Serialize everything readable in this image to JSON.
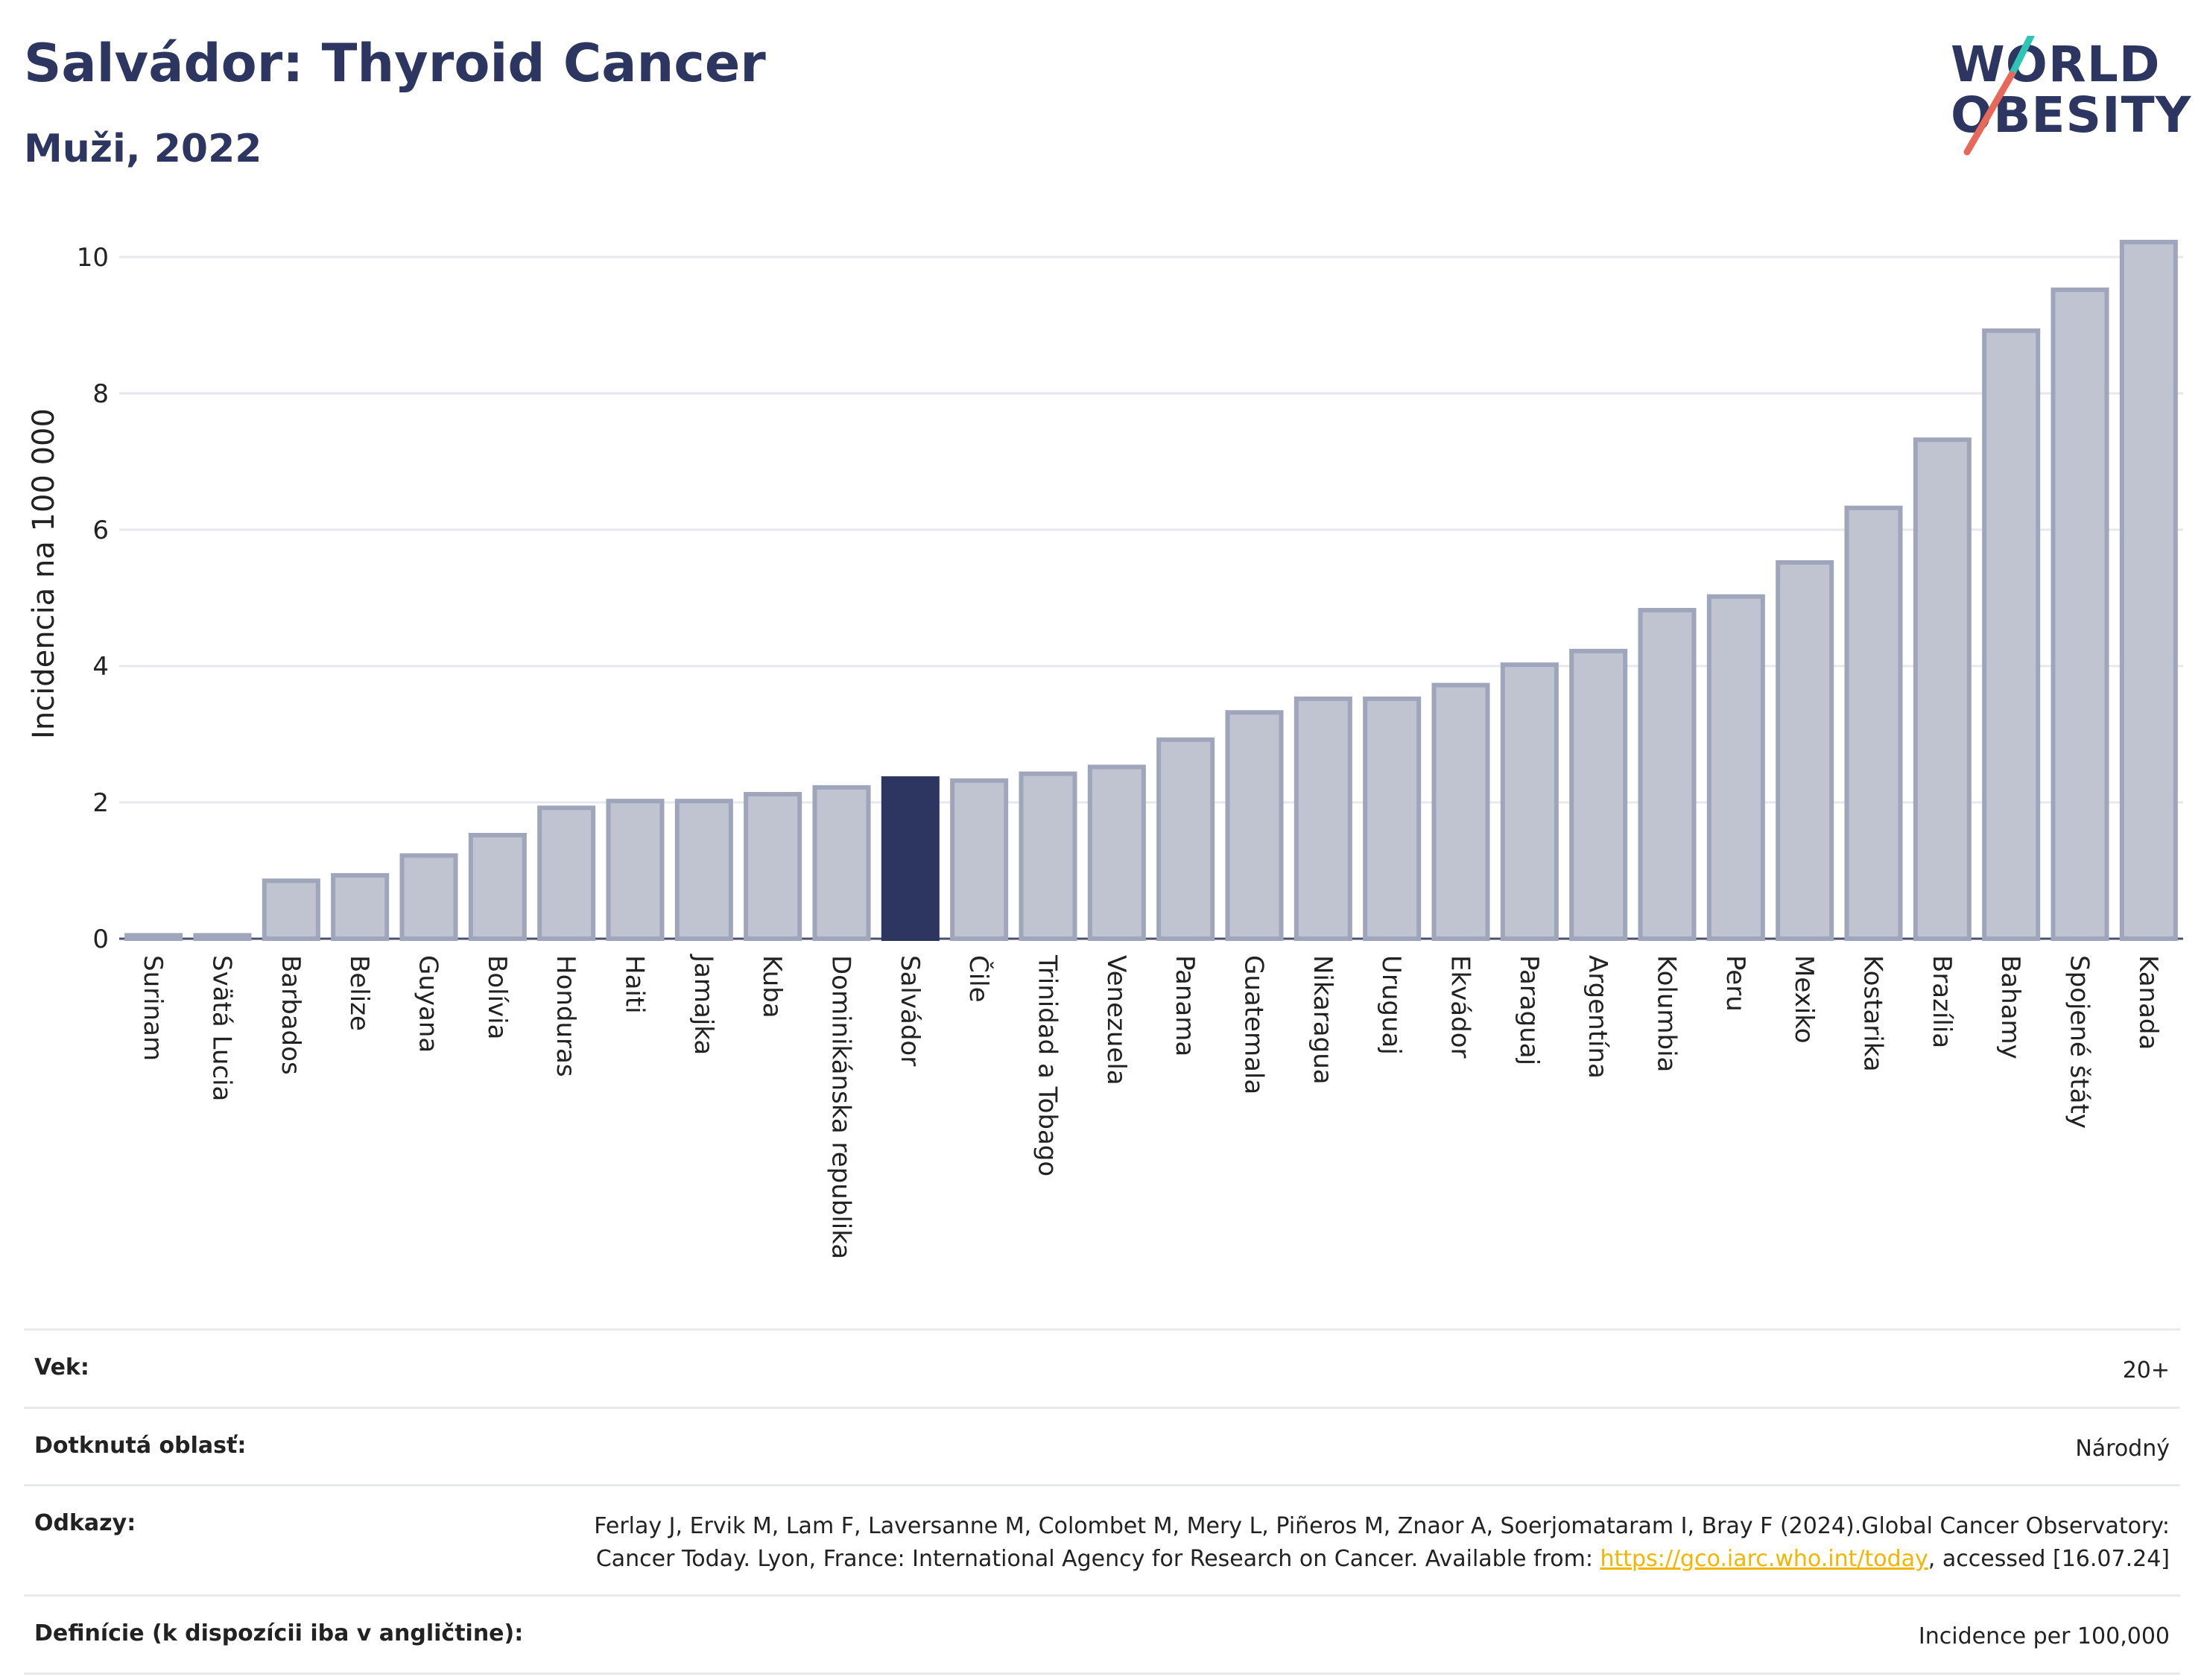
{
  "header": {
    "title": "Salvádor: Thyroid Cancer",
    "subtitle": "Muži, 2022"
  },
  "logo": {
    "line1": "WORLD",
    "line2": "OBESITY",
    "accent_colors": [
      "#2ec4b6",
      "#e8685a"
    ]
  },
  "colors": {
    "highlight": "#2c3661",
    "bar_fill": "#c0c4d1",
    "bar_stroke": "#9fa5ba",
    "grid": "#e6e8ee",
    "link": "#f2b500"
  },
  "chart_data": {
    "type": "bar",
    "ylabel": "Incidencia na 100 000",
    "ylim": [
      0,
      10.5
    ],
    "yticks": [
      0,
      2,
      4,
      6,
      8,
      10
    ],
    "grid": true,
    "highlight_category": "Salvádor",
    "categories": [
      "Surinam",
      "Svätá Lucia",
      "Barbados",
      "Belize",
      "Guyana",
      "Bolívia",
      "Honduras",
      "Haiti",
      "Jamajka",
      "Kuba",
      "Dominikánska republika",
      "Salvádor",
      "Čile",
      "Trinidad a Tobago",
      "Venezuela",
      "Panama",
      "Guatemala",
      "Nikaragua",
      "Uruguaj",
      "Ekvádor",
      "Paraguaj",
      "Argentína",
      "Kolumbia",
      "Peru",
      "Mexiko",
      "Kostarika",
      "Brazília",
      "Bahamy",
      "Spojené štáty",
      "Kanada"
    ],
    "values": [
      0.05,
      0.05,
      0.85,
      0.93,
      1.22,
      1.52,
      1.92,
      2.02,
      2.02,
      2.12,
      2.22,
      2.35,
      2.32,
      2.42,
      2.52,
      2.92,
      3.32,
      3.52,
      3.52,
      3.72,
      4.02,
      4.22,
      4.82,
      5.02,
      5.52,
      6.32,
      7.32,
      8.92,
      9.52,
      10.22
    ]
  },
  "info": {
    "age_label": "Vek:",
    "age_value": "20+",
    "area_label": "Dotknutá oblasť:",
    "area_value": "Národný",
    "ref_label": "Odkazy:",
    "ref_text_1": "Ferlay J, Ervik M, Lam F, Laversanne M, Colombet M, Mery L, Piñeros M, Znaor A, Soerjomataram I, Bray F (2024).Global Cancer Observatory: Cancer Today. Lyon, France: International Agency for Research on Cancer. Available from: ",
    "ref_link": "https://gco.iarc.who.int/today",
    "ref_text_2": ", accessed [16.07.24]",
    "def_label": "Definície (k dispozícii iba v angličtine):",
    "def_value": "Incidence per 100,000"
  }
}
